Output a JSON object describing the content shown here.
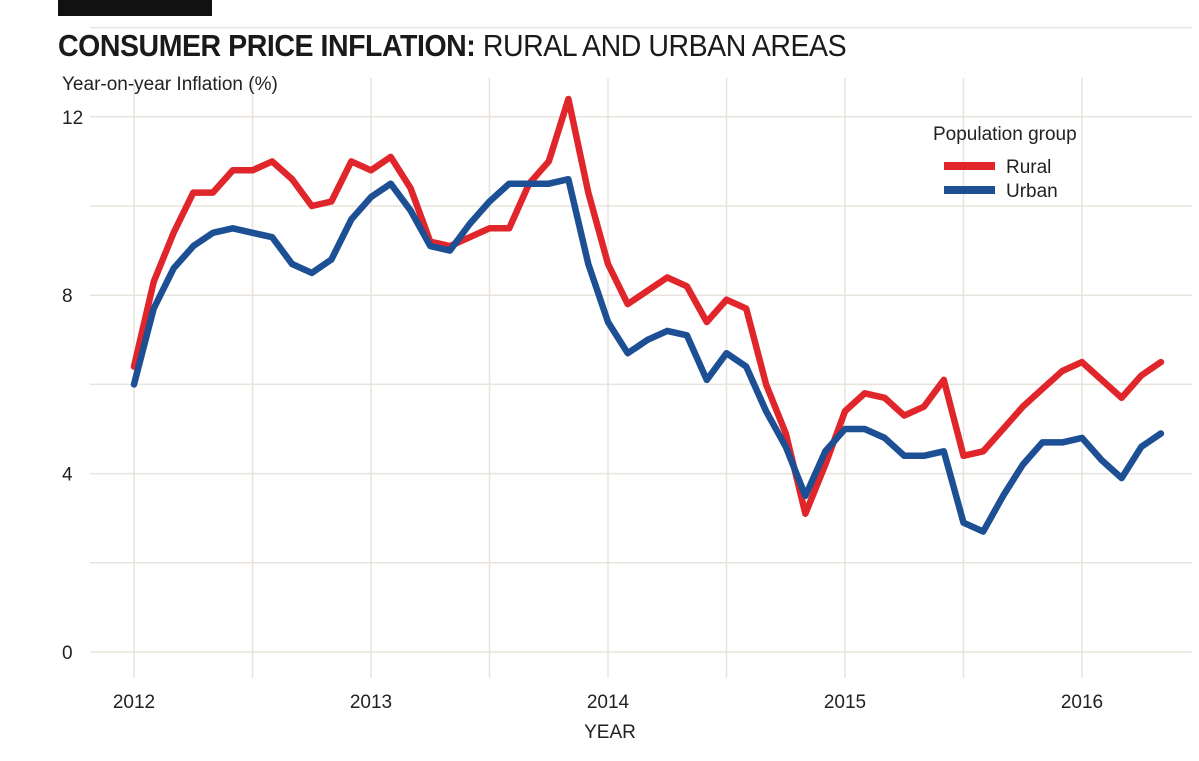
{
  "title_bold": "CONSUMER PRICE INFLATION:",
  "title_light": "RURAL AND URBAN AREAS",
  "chart_data": {
    "type": "line",
    "title": "CONSUMER PRICE INFLATION: RURAL AND URBAN AREAS",
    "ylabel": "Year-on-year Inflation (%)",
    "xlabel": "YEAR",
    "ylim": [
      0,
      12
    ],
    "yticks": [
      0,
      4,
      8,
      12
    ],
    "xlim": [
      2012,
      2016.5
    ],
    "xticks": [
      2012,
      2013,
      2014,
      2015,
      2016
    ],
    "grid": true,
    "legend": {
      "title": "Population group",
      "placement": "top-right"
    },
    "x": [
      2012.0,
      2012.083,
      2012.167,
      2012.25,
      2012.333,
      2012.417,
      2012.5,
      2012.583,
      2012.667,
      2012.75,
      2012.833,
      2012.917,
      2013.0,
      2013.083,
      2013.167,
      2013.25,
      2013.333,
      2013.417,
      2013.5,
      2013.583,
      2013.667,
      2013.75,
      2013.833,
      2013.917,
      2014.0,
      2014.083,
      2014.167,
      2014.25,
      2014.333,
      2014.417,
      2014.5,
      2014.583,
      2014.667,
      2014.75,
      2014.833,
      2014.917,
      2015.0,
      2015.083,
      2015.167,
      2015.25,
      2015.333,
      2015.417,
      2015.5,
      2015.583,
      2015.667,
      2015.75,
      2015.833,
      2015.917,
      2016.0,
      2016.083,
      2016.167,
      2016.25,
      2016.333
    ],
    "series": [
      {
        "name": "Rural",
        "color": "#e0252b",
        "values": [
          6.4,
          8.3,
          9.4,
          10.3,
          10.3,
          10.8,
          10.8,
          11.0,
          10.6,
          10.0,
          10.1,
          11.0,
          10.8,
          11.1,
          10.4,
          9.2,
          9.1,
          9.3,
          9.5,
          9.5,
          10.5,
          11.0,
          12.4,
          10.3,
          8.7,
          7.8,
          8.1,
          8.4,
          8.2,
          7.4,
          7.9,
          7.7,
          6.0,
          4.9,
          3.1,
          4.2,
          5.4,
          5.8,
          5.7,
          5.3,
          5.5,
          6.1,
          4.4,
          4.5,
          5.0,
          5.5,
          5.9,
          6.3,
          6.5,
          6.1,
          5.7,
          6.2,
          6.5
        ]
      },
      {
        "name": "Urban",
        "color": "#1c4f94",
        "values": [
          6.0,
          7.7,
          8.6,
          9.1,
          9.4,
          9.5,
          9.4,
          9.3,
          8.7,
          8.5,
          8.8,
          9.7,
          10.2,
          10.5,
          9.9,
          9.1,
          9.0,
          9.6,
          10.1,
          10.5,
          10.5,
          10.5,
          10.6,
          8.7,
          7.4,
          6.7,
          7.0,
          7.2,
          7.1,
          6.1,
          6.7,
          6.4,
          5.4,
          4.6,
          3.5,
          4.5,
          5.0,
          5.0,
          4.8,
          4.4,
          4.4,
          4.5,
          2.9,
          2.7,
          3.5,
          4.2,
          4.7,
          4.7,
          4.8,
          4.3,
          3.9,
          4.6,
          4.9
        ]
      }
    ]
  }
}
